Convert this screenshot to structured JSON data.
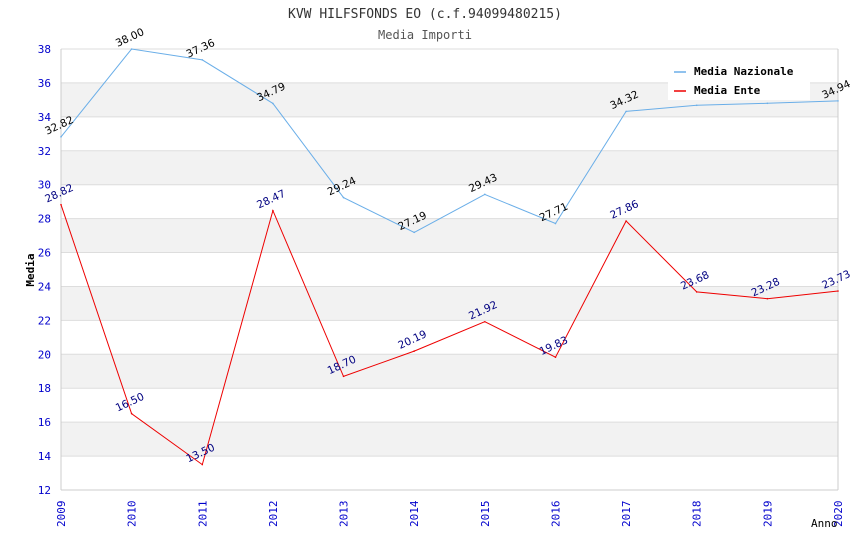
{
  "chart_data": {
    "type": "line",
    "title": "KVW HILFSFONDS EO (c.f.94099480215)",
    "subtitle": "Media Importi",
    "xlabel": "Anno",
    "ylabel": "Media",
    "categories": [
      "2009",
      "2010",
      "2011",
      "2012",
      "2013",
      "2014",
      "2015",
      "2016",
      "2017",
      "2018",
      "2019",
      "2020"
    ],
    "ylim": [
      12,
      38
    ],
    "yticks": [
      12,
      14,
      16,
      18,
      20,
      22,
      24,
      26,
      28,
      30,
      32,
      34,
      36,
      38
    ],
    "grid": true,
    "legend_position": "top-right",
    "series": [
      {
        "name": "Media Nazionale",
        "color": "#6aaee8",
        "label_color": "#000000",
        "values": [
          32.82,
          38.0,
          37.36,
          34.79,
          29.24,
          27.19,
          29.43,
          27.71,
          34.32,
          34.68,
          34.8,
          34.94
        ],
        "labels": [
          "32.82",
          "38.00",
          "37.36",
          "34.79",
          "29.24",
          "27.19",
          "29.43",
          "27.71",
          "34.32",
          null,
          null,
          "34.94"
        ]
      },
      {
        "name": "Media Ente",
        "color": "#ee0000",
        "label_color": "#000080",
        "values": [
          28.82,
          16.5,
          13.5,
          28.47,
          18.7,
          20.19,
          21.92,
          19.83,
          27.86,
          23.68,
          23.28,
          23.73
        ],
        "labels": [
          "28.82",
          "16.50",
          "13.50",
          "28.47",
          "18.70",
          "20.19",
          "21.92",
          "19.83",
          "27.86",
          "23.68",
          "23.28",
          "23.73"
        ]
      }
    ]
  },
  "colors": {
    "axis_tick_text": "#0000cc",
    "band": "#f2f2f2",
    "gridline": "#dddddd",
    "axis": "#cccccc",
    "title": "#333333"
  }
}
